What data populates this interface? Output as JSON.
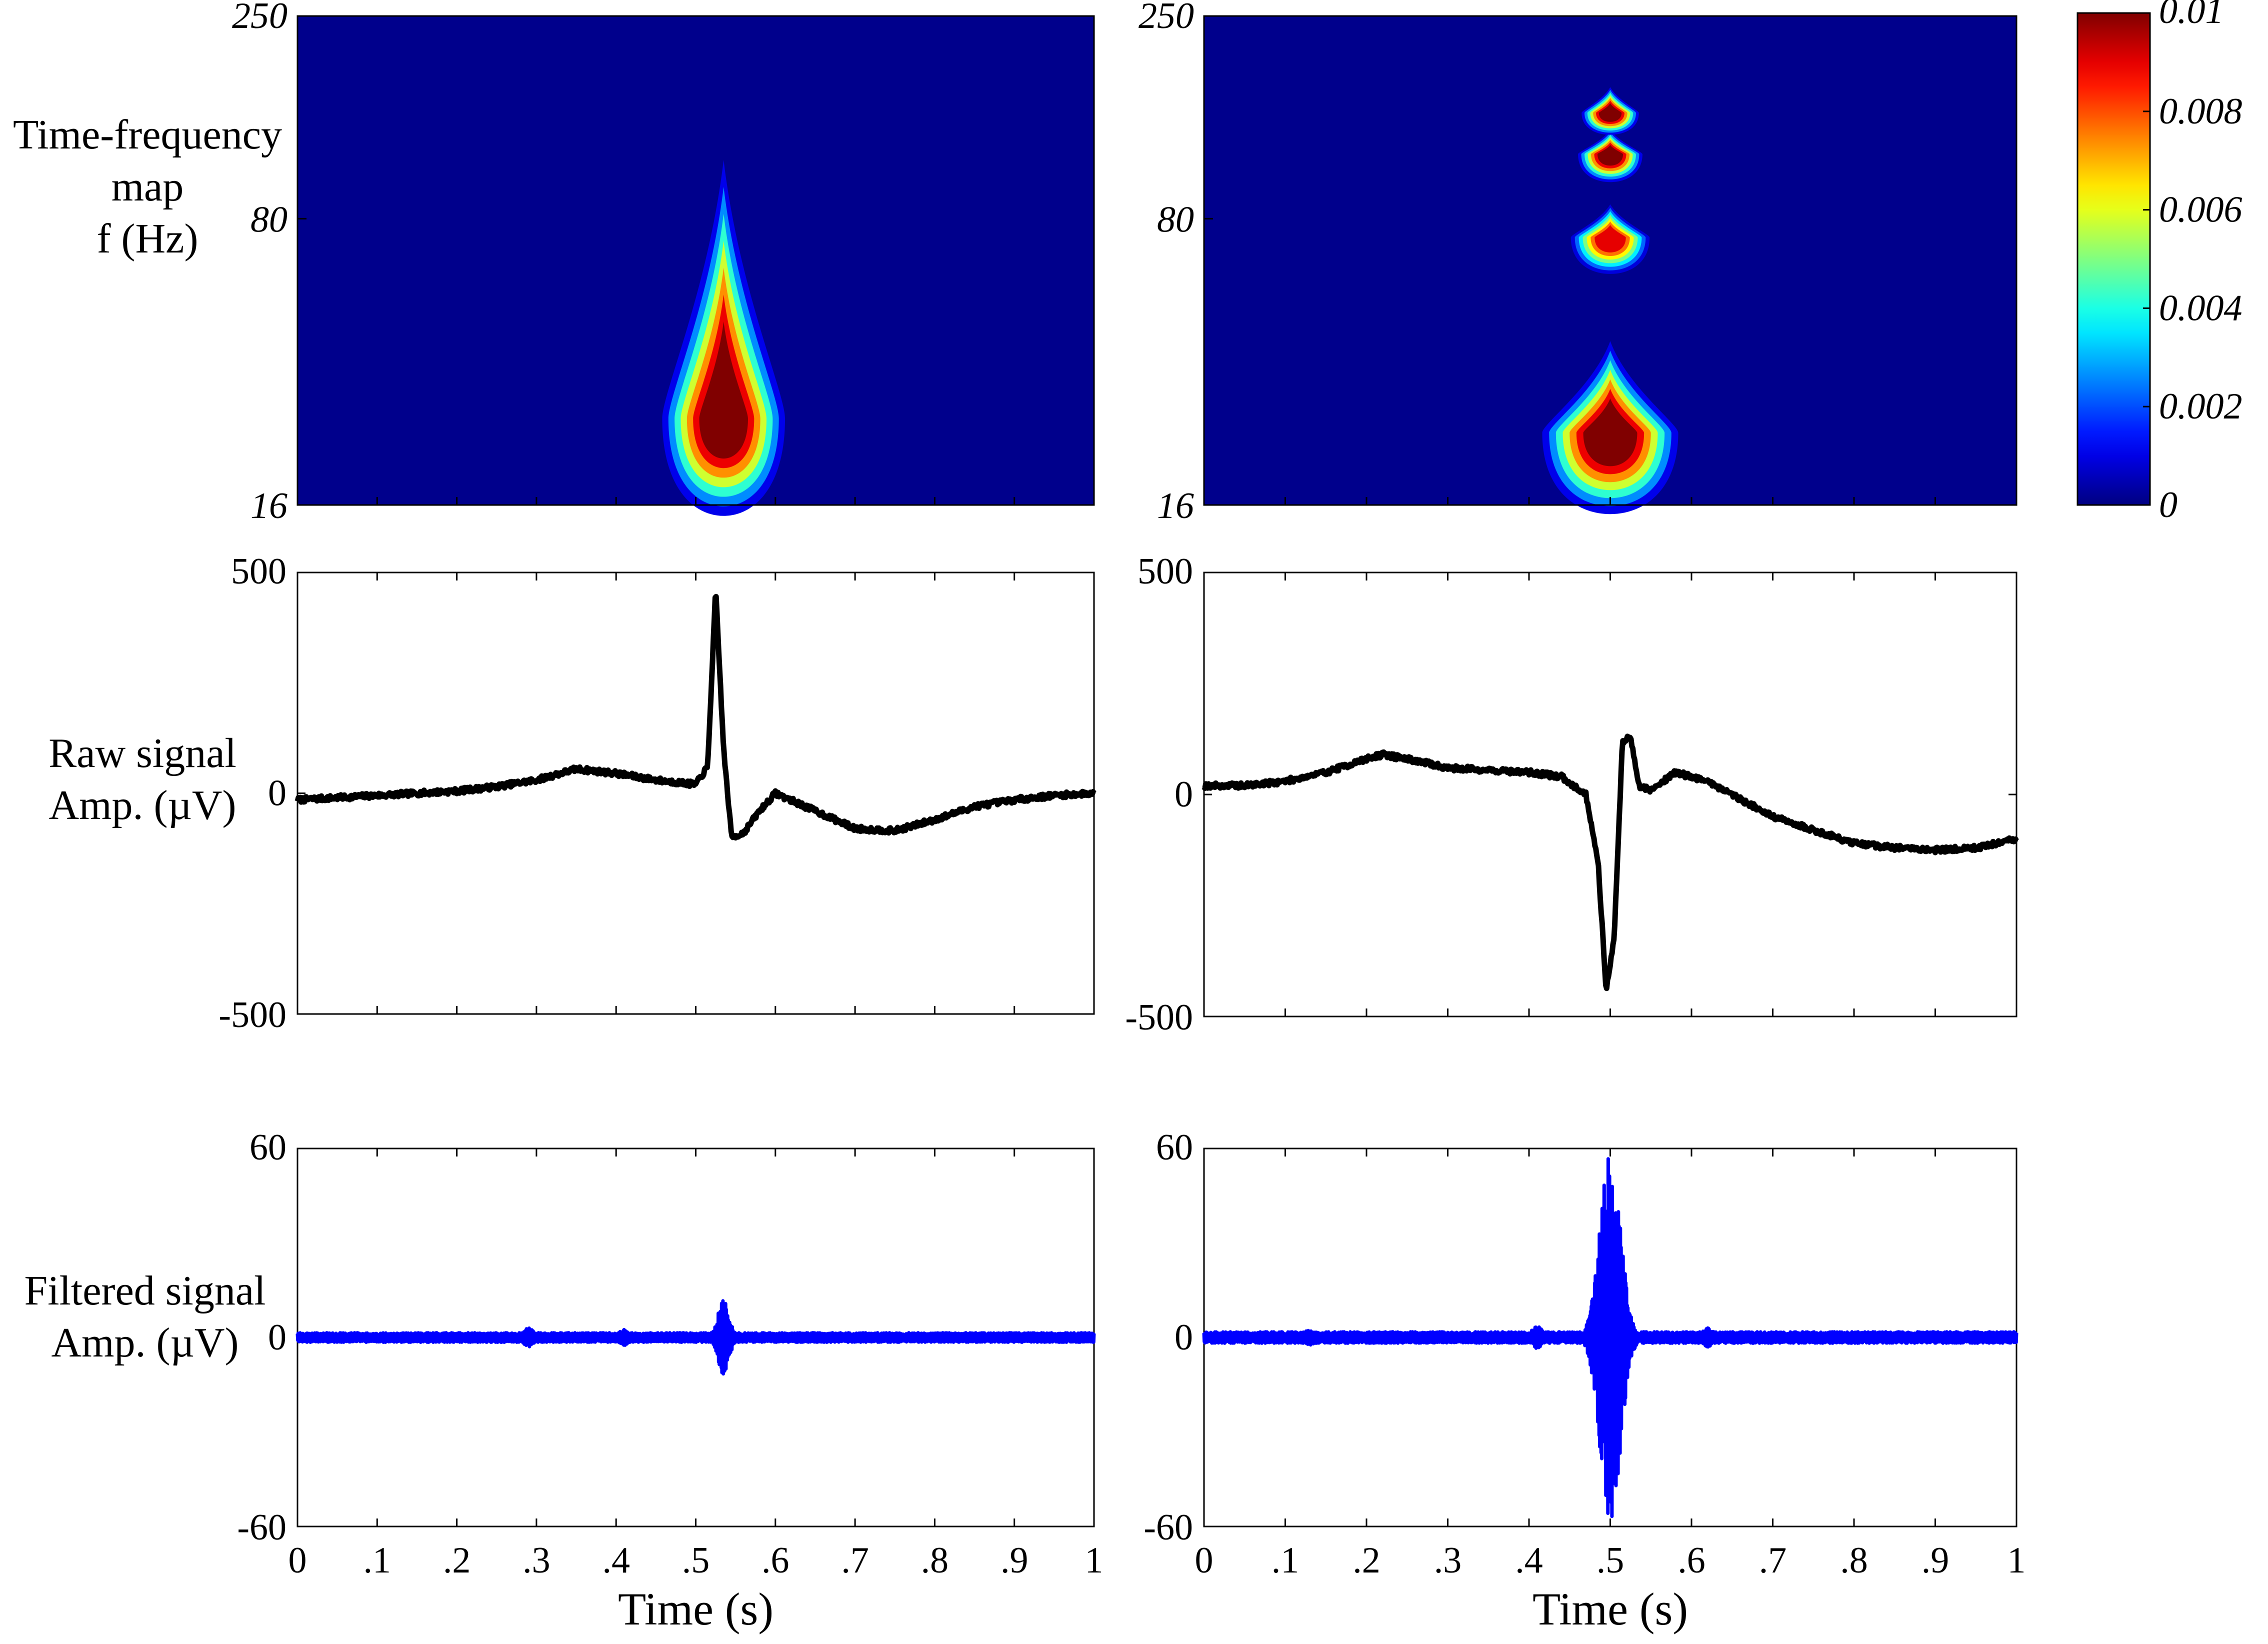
{
  "left_labels": {
    "tf_map": [
      "Time-frequency",
      "map",
      "f (Hz)"
    ],
    "raw": [
      "Raw signal",
      "Amp. (µV)"
    ],
    "filtered": [
      "Filtered signal",
      "Amp. (µV)"
    ]
  },
  "colors": {
    "raw_line": "#000000",
    "filtered_line": "#0000ff",
    "map_background": "#00008c"
  },
  "chart_data": [
    {
      "id": "tf_left",
      "type": "heatmap",
      "title": "",
      "ylabel": "Time-frequency map f (Hz)",
      "yscale": "log",
      "ylim": [
        16,
        250
      ],
      "yticks": [
        16,
        80,
        250
      ],
      "ytick_labels": [
        "16",
        "80",
        "250"
      ],
      "xlim": [
        0,
        1
      ],
      "blobs": [
        {
          "t": 0.535,
          "f_center": 26,
          "f_top": 95,
          "f_bottom": 16,
          "time_halfwidth": 0.035,
          "peak_power": 0.0105
        }
      ]
    },
    {
      "id": "tf_right",
      "type": "heatmap",
      "title": "",
      "yscale": "log",
      "ylim": [
        16,
        250
      ],
      "yticks": [
        16,
        80,
        250
      ],
      "ytick_labels": [
        "16",
        "80",
        "250"
      ],
      "xlim": [
        0,
        1
      ],
      "blobs": [
        {
          "t": 0.5,
          "f_center": 24,
          "f_top": 38,
          "f_bottom": 16,
          "time_halfwidth": 0.038,
          "peak_power": 0.0105
        },
        {
          "t": 0.5,
          "f_center": 72,
          "f_top": 85,
          "f_bottom": 60,
          "time_halfwidth": 0.022,
          "peak_power": 0.009
        },
        {
          "t": 0.5,
          "f_center": 115,
          "f_top": 130,
          "f_bottom": 100,
          "time_halfwidth": 0.018,
          "peak_power": 0.0105
        },
        {
          "t": 0.5,
          "f_center": 145,
          "f_top": 165,
          "f_bottom": 130,
          "time_halfwidth": 0.016,
          "peak_power": 0.0105
        }
      ]
    },
    {
      "id": "colorbar",
      "type": "colorbar",
      "range": [
        0,
        0.01
      ],
      "tick_labels": [
        "0",
        "0.002",
        "0.004",
        "0.006",
        "0.008",
        "0.01"
      ]
    },
    {
      "id": "raw_left",
      "type": "line",
      "ylabel": "Raw signal Amp. (µV)",
      "ylim": [
        -500,
        500
      ],
      "ytick_labels": [
        "500",
        "0",
        "-500"
      ],
      "xlim": [
        0,
        1
      ],
      "series": [
        {
          "name": "raw",
          "x": [
            0,
            0.05,
            0.1,
            0.15,
            0.2,
            0.25,
            0.3,
            0.35,
            0.4,
            0.45,
            0.5,
            0.515,
            0.525,
            0.535,
            0.545,
            0.56,
            0.58,
            0.6,
            0.65,
            0.7,
            0.75,
            0.8,
            0.85,
            0.9,
            0.95,
            1.0
          ],
          "y": [
            -15,
            -10,
            -5,
            0,
            5,
            15,
            30,
            55,
            45,
            30,
            20,
            60,
            460,
            100,
            -100,
            -90,
            -40,
            0,
            -40,
            -80,
            -85,
            -60,
            -30,
            -15,
            -5,
            0
          ]
        }
      ]
    },
    {
      "id": "raw_right",
      "type": "line",
      "ylim": [
        -500,
        500
      ],
      "ytick_labels": [
        "500",
        "0",
        "-500"
      ],
      "xlim": [
        0,
        1
      ],
      "series": [
        {
          "name": "raw",
          "x": [
            0,
            0.05,
            0.1,
            0.15,
            0.2,
            0.22,
            0.25,
            0.3,
            0.35,
            0.4,
            0.44,
            0.47,
            0.485,
            0.495,
            0.505,
            0.515,
            0.525,
            0.535,
            0.55,
            0.58,
            0.62,
            0.7,
            0.8,
            0.85,
            0.9,
            0.95,
            1.0
          ],
          "y": [
            20,
            20,
            30,
            50,
            80,
            90,
            80,
            60,
            55,
            50,
            40,
            0,
            -150,
            -440,
            -320,
            120,
            130,
            20,
            10,
            50,
            30,
            -50,
            -110,
            -120,
            -125,
            -120,
            -100
          ]
        }
      ]
    },
    {
      "id": "filtered_left",
      "type": "line",
      "ylabel": "Filtered signal Amp. (µV)",
      "ylim": [
        -60,
        60
      ],
      "ytick_labels": [
        "60",
        "0",
        "-60"
      ],
      "xlim": [
        0,
        1
      ],
      "xticks": [
        0,
        0.1,
        0.2,
        0.3,
        0.4,
        0.5,
        0.6,
        0.7,
        0.8,
        0.9,
        1
      ],
      "xtick_labels": [
        "0",
        ".1",
        ".2",
        ".3",
        ".4",
        ".5",
        ".6",
        ".7",
        ".8",
        ".9",
        "1"
      ],
      "xlabel": "Time (s)",
      "series": [
        {
          "name": "filtered",
          "noise_amp": 1.5,
          "bursts": [
            {
              "t": 0.29,
              "amp": 3
            },
            {
              "t": 0.41,
              "amp": 2.5
            },
            {
              "t": 0.535,
              "amp": 12
            }
          ]
        }
      ]
    },
    {
      "id": "filtered_right",
      "type": "line",
      "ylim": [
        -60,
        60
      ],
      "ytick_labels": [
        "60",
        "0",
        "-60"
      ],
      "xlim": [
        0,
        1
      ],
      "xticks": [
        0,
        0.1,
        0.2,
        0.3,
        0.4,
        0.5,
        0.6,
        0.7,
        0.8,
        0.9,
        1
      ],
      "xtick_labels": [
        "0",
        ".1",
        ".2",
        ".3",
        ".4",
        ".5",
        ".6",
        ".7",
        ".8",
        ".9",
        "1"
      ],
      "xlabel": "Time (s)",
      "series": [
        {
          "name": "filtered",
          "noise_amp": 1.8,
          "bursts": [
            {
              "t": 0.13,
              "amp": 2.5
            },
            {
              "t": 0.41,
              "amp": 3.5
            },
            {
              "t": 0.5,
              "amp": 58
            },
            {
              "t": 0.62,
              "amp": 3
            }
          ]
        }
      ]
    }
  ]
}
